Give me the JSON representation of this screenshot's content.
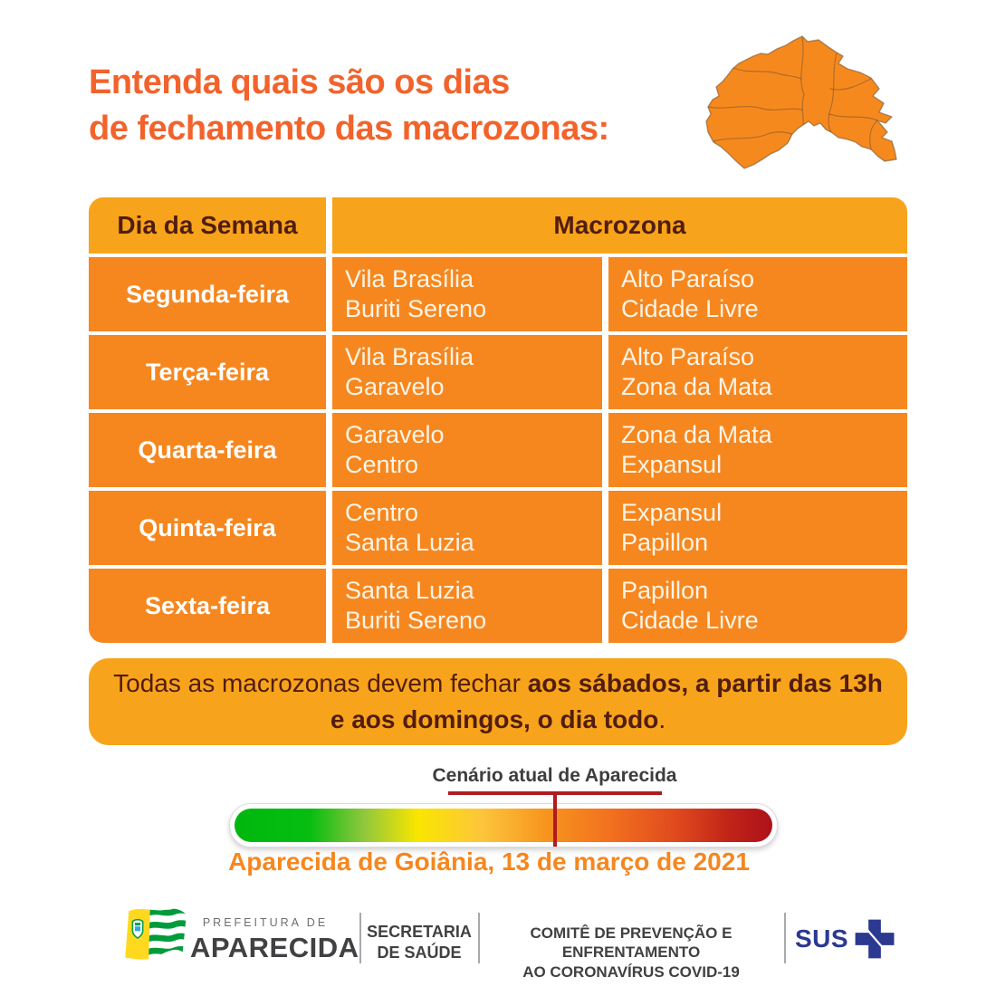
{
  "title": {
    "line1": "Entenda quais são os dias",
    "line2": "de fechamento das macrozonas:"
  },
  "table": {
    "header_day": "Dia da Semana",
    "header_macrozone": "Macrozona",
    "rows": [
      {
        "day": "Segunda-feira",
        "a1": "Vila Brasília",
        "a2": "Buriti Sereno",
        "b1": "Alto Paraíso",
        "b2": "Cidade Livre"
      },
      {
        "day": "Terça-feira",
        "a1": "Vila Brasília",
        "a2": "Garavelo",
        "b1": "Alto Paraíso",
        "b2": "Zona da Mata"
      },
      {
        "day": "Quarta-feira",
        "a1": "Garavelo",
        "a2": "Centro",
        "b1": "Zona da Mata",
        "b2": "Expansul"
      },
      {
        "day": "Quinta-feira",
        "a1": "Centro",
        "a2": "Santa Luzia",
        "b1": "Expansul",
        "b2": "Papillon"
      },
      {
        "day": "Sexta-feira",
        "a1": "Santa Luzia",
        "a2": "Buriti Sereno",
        "b1": "Papillon",
        "b2": "Cidade Livre"
      }
    ]
  },
  "banner": {
    "line1_regular": "Todas as macrozonas devem fechar ",
    "line1_bold": "aos sábados, a partir das 13h",
    "line2_bold": "e aos domingos, o dia todo",
    "line2_end": "."
  },
  "scale": {
    "label": "Cenário atual de Aparecida",
    "marker_position_pct": 59.6,
    "date": "Aparecida de Goiânia, 13 de março de 2021",
    "gradient": [
      "#00B80D",
      "#06BD10",
      "#8FC73E",
      "#F9E600",
      "#FDC53B",
      "#F7941E",
      "#F2701F",
      "#E04A1E",
      "#C02418",
      "#AE111A"
    ],
    "gradient_positions": [
      0,
      14,
      24,
      34,
      46,
      58,
      70,
      82,
      92,
      100
    ]
  },
  "footer": {
    "prefeitura_small": "PREFEITURA DE",
    "prefeitura_big": "APARECIDA",
    "secretaria_line1": "SECRETARIA",
    "secretaria_line2": "DE SAÚDE",
    "comite_line1": "COMITÊ DE PREVENÇÃO E ENFRENTAMENTO",
    "comite_line2": "AO CORONAVÍRUS COVID-19",
    "sus": "SUS"
  },
  "colors": {
    "title_orange": "#F2632C",
    "header_amber": "#F7A41C",
    "row_orange": "#F6871F",
    "dark_brown": "#521D0E",
    "marker_red": "#B01B20",
    "date_orange": "#F6871F",
    "footer_gray": "#414042",
    "sus_blue": "#2B3990",
    "flag_yellow": "#FFD91F",
    "flag_green": "#009B3A"
  }
}
